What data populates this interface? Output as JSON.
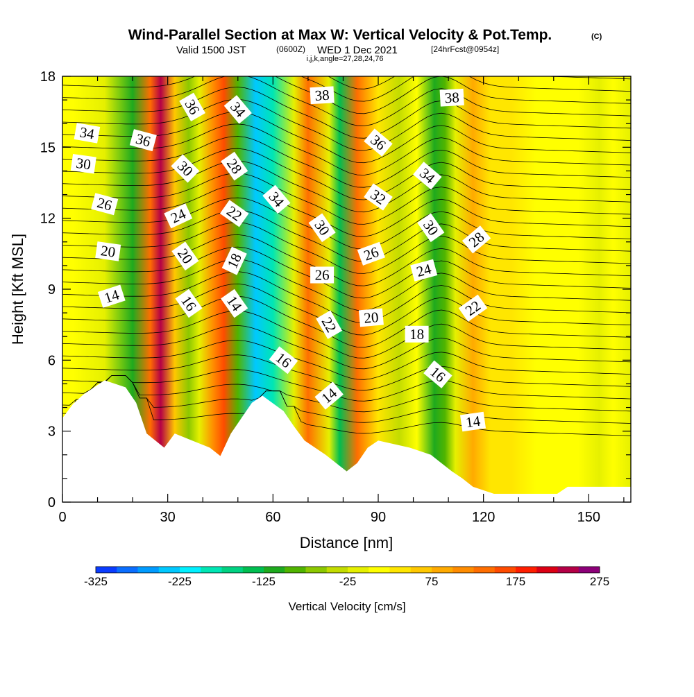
{
  "chart_data": {
    "type": "heatmap",
    "title": "Wind-Parallel Section at Max W: Vertical Velocity & Pot.Temp.",
    "title_mark": "(C)",
    "subtitle_main": "Valid 1500 JST",
    "subtitle_utc": "(0600Z)",
    "subtitle_date": "WED 1 Dec 2021",
    "subtitle_fcst": "[24hrFcst@0954z]",
    "subtitle_indices": "i,j,k,angle=27,28,24,76",
    "xlabel": "Distance [nm]",
    "ylabel": "Height [Kft MSL]",
    "xlim": [
      0,
      162
    ],
    "ylim": [
      0,
      18
    ],
    "x_ticks": [
      "0",
      "30",
      "60",
      "90",
      "120",
      "150"
    ],
    "x_tick_values": [
      0,
      30,
      60,
      90,
      120,
      150
    ],
    "y_ticks": [
      "0",
      "3",
      "6",
      "9",
      "12",
      "15",
      "18"
    ],
    "y_tick_values": [
      0,
      3,
      6,
      9,
      12,
      15,
      18
    ],
    "colorbar": {
      "label": "Vertical Velocity [cm/s]",
      "min": -325,
      "max": 275,
      "step": 25,
      "ticks": [
        "-325",
        "-225",
        "-125",
        "-25",
        "75",
        "175",
        "275"
      ],
      "tick_values": [
        -325,
        -225,
        -125,
        -25,
        75,
        175,
        275
      ],
      "colors": [
        "#0000ff",
        "#0a3cff",
        "#0a6eff",
        "#009bff",
        "#00c8ff",
        "#00f0ff",
        "#00e6b4",
        "#00d282",
        "#00be50",
        "#1eaa1e",
        "#50b400",
        "#8cc800",
        "#c3dc00",
        "#e6f000",
        "#ffff00",
        "#ffe600",
        "#ffc800",
        "#ffaa00",
        "#ff8c00",
        "#ff6e00",
        "#ff4b00",
        "#ff1e00",
        "#dc0014",
        "#b40046",
        "#8c0078",
        "#64007d"
      ]
    },
    "velocity_columns": [
      {
        "x": 3,
        "w": 35
      },
      {
        "x": 12,
        "w": 10
      },
      {
        "x": 20,
        "w": -80
      },
      {
        "x": 25,
        "w": 150
      },
      {
        "x": 28,
        "w": 260
      },
      {
        "x": 32,
        "w": 80
      },
      {
        "x": 36,
        "w": -30
      },
      {
        "x": 39,
        "w": 20
      },
      {
        "x": 43,
        "w": 140
      },
      {
        "x": 46,
        "w": 180
      },
      {
        "x": 50,
        "w": -60
      },
      {
        "x": 55,
        "w": -210
      },
      {
        "x": 60,
        "w": -160
      },
      {
        "x": 66,
        "w": 20
      },
      {
        "x": 70,
        "w": 160
      },
      {
        "x": 76,
        "w": 20
      },
      {
        "x": 79,
        "w": -110
      },
      {
        "x": 84,
        "w": 150
      },
      {
        "x": 90,
        "w": 60
      },
      {
        "x": 96,
        "w": -20
      },
      {
        "x": 101,
        "w": 30
      },
      {
        "x": 106,
        "w": -100
      },
      {
        "x": 109,
        "w": -60
      },
      {
        "x": 112,
        "w": 20
      },
      {
        "x": 117,
        "w": 110
      },
      {
        "x": 122,
        "w": 60
      },
      {
        "x": 128,
        "w": 55
      },
      {
        "x": 135,
        "w": 40
      },
      {
        "x": 141,
        "w": 40
      },
      {
        "x": 147,
        "w": 30
      },
      {
        "x": 153,
        "w": 20
      },
      {
        "x": 157,
        "w": 25
      },
      {
        "x": 162,
        "w": 10
      }
    ],
    "terrain": [
      [
        0,
        3.55
      ],
      [
        3,
        4.15
      ],
      [
        6,
        4.55
      ],
      [
        9,
        4.85
      ],
      [
        12,
        5.15
      ],
      [
        18,
        4.85
      ],
      [
        21,
        4.2
      ],
      [
        24,
        2.9
      ],
      [
        29,
        2.3
      ],
      [
        32,
        2.9
      ],
      [
        42,
        2.3
      ],
      [
        45,
        1.95
      ],
      [
        48,
        2.9
      ],
      [
        51,
        3.55
      ],
      [
        54,
        4.2
      ],
      [
        57,
        4.5
      ],
      [
        63,
        3.85
      ],
      [
        66,
        3.2
      ],
      [
        69,
        2.6
      ],
      [
        72,
        2.3
      ],
      [
        75,
        2.0
      ],
      [
        78,
        1.65
      ],
      [
        81,
        1.3
      ],
      [
        84,
        1.65
      ],
      [
        87,
        2.3
      ],
      [
        90,
        2.6
      ],
      [
        99,
        2.3
      ],
      [
        105,
        2.0
      ],
      [
        108,
        1.65
      ],
      [
        111,
        1.3
      ],
      [
        114,
        1.0
      ],
      [
        117,
        0.65
      ],
      [
        123,
        0.35
      ],
      [
        129,
        0.35
      ],
      [
        141,
        0.35
      ],
      [
        144,
        0.65
      ],
      [
        162,
        0.65
      ]
    ],
    "contour_labels": [
      {
        "text": "14",
        "x": 14,
        "y": 8.7,
        "rot": -18
      },
      {
        "text": "20",
        "x": 13,
        "y": 10.6,
        "rot": 8
      },
      {
        "text": "26",
        "x": 12,
        "y": 12.6,
        "rot": 15
      },
      {
        "text": "30",
        "x": 6,
        "y": 14.3,
        "rot": 8
      },
      {
        "text": "34",
        "x": 7,
        "y": 15.6,
        "rot": 10
      },
      {
        "text": "36",
        "x": 23,
        "y": 15.3,
        "rot": 15
      },
      {
        "text": "36",
        "x": 37,
        "y": 16.7,
        "rot": 60
      },
      {
        "text": "30",
        "x": 35,
        "y": 14.1,
        "rot": 45
      },
      {
        "text": "24",
        "x": 33,
        "y": 12.1,
        "rot": -25
      },
      {
        "text": "20",
        "x": 35,
        "y": 10.4,
        "rot": 55
      },
      {
        "text": "16",
        "x": 36,
        "y": 8.4,
        "rot": 55
      },
      {
        "text": "34",
        "x": 50,
        "y": 16.6,
        "rot": 50
      },
      {
        "text": "28",
        "x": 49,
        "y": 14.2,
        "rot": 55
      },
      {
        "text": "22",
        "x": 49,
        "y": 12.2,
        "rot": 35
      },
      {
        "text": "18",
        "x": 49,
        "y": 10.2,
        "rot": -65
      },
      {
        "text": "14",
        "x": 49,
        "y": 8.4,
        "rot": 55
      },
      {
        "text": "34",
        "x": 61,
        "y": 12.8,
        "rot": 50
      },
      {
        "text": "16",
        "x": 63,
        "y": 6.0,
        "rot": 38
      },
      {
        "text": "38",
        "x": 74,
        "y": 17.2,
        "rot": -3
      },
      {
        "text": "30",
        "x": 74,
        "y": 11.6,
        "rot": 55
      },
      {
        "text": "26",
        "x": 74,
        "y": 9.6,
        "rot": 0
      },
      {
        "text": "22",
        "x": 76,
        "y": 7.5,
        "rot": 60
      },
      {
        "text": "14",
        "x": 76,
        "y": 4.5,
        "rot": -40
      },
      {
        "text": "36",
        "x": 90,
        "y": 15.2,
        "rot": 40
      },
      {
        "text": "32",
        "x": 90,
        "y": 12.9,
        "rot": 35
      },
      {
        "text": "26",
        "x": 88,
        "y": 10.5,
        "rot": -20
      },
      {
        "text": "20",
        "x": 88,
        "y": 7.8,
        "rot": -5
      },
      {
        "text": "18",
        "x": 101,
        "y": 7.1,
        "rot": 0
      },
      {
        "text": "34",
        "x": 104,
        "y": 13.8,
        "rot": 40
      },
      {
        "text": "30",
        "x": 105,
        "y": 11.6,
        "rot": 55
      },
      {
        "text": "24",
        "x": 103,
        "y": 9.8,
        "rot": -15
      },
      {
        "text": "16",
        "x": 107,
        "y": 5.4,
        "rot": 40
      },
      {
        "text": "38",
        "x": 111,
        "y": 17.1,
        "rot": -3
      },
      {
        "text": "28",
        "x": 118,
        "y": 11.1,
        "rot": -40
      },
      {
        "text": "22",
        "x": 117,
        "y": 8.2,
        "rot": -35
      },
      {
        "text": "14",
        "x": 117,
        "y": 3.4,
        "rot": -8
      }
    ]
  }
}
